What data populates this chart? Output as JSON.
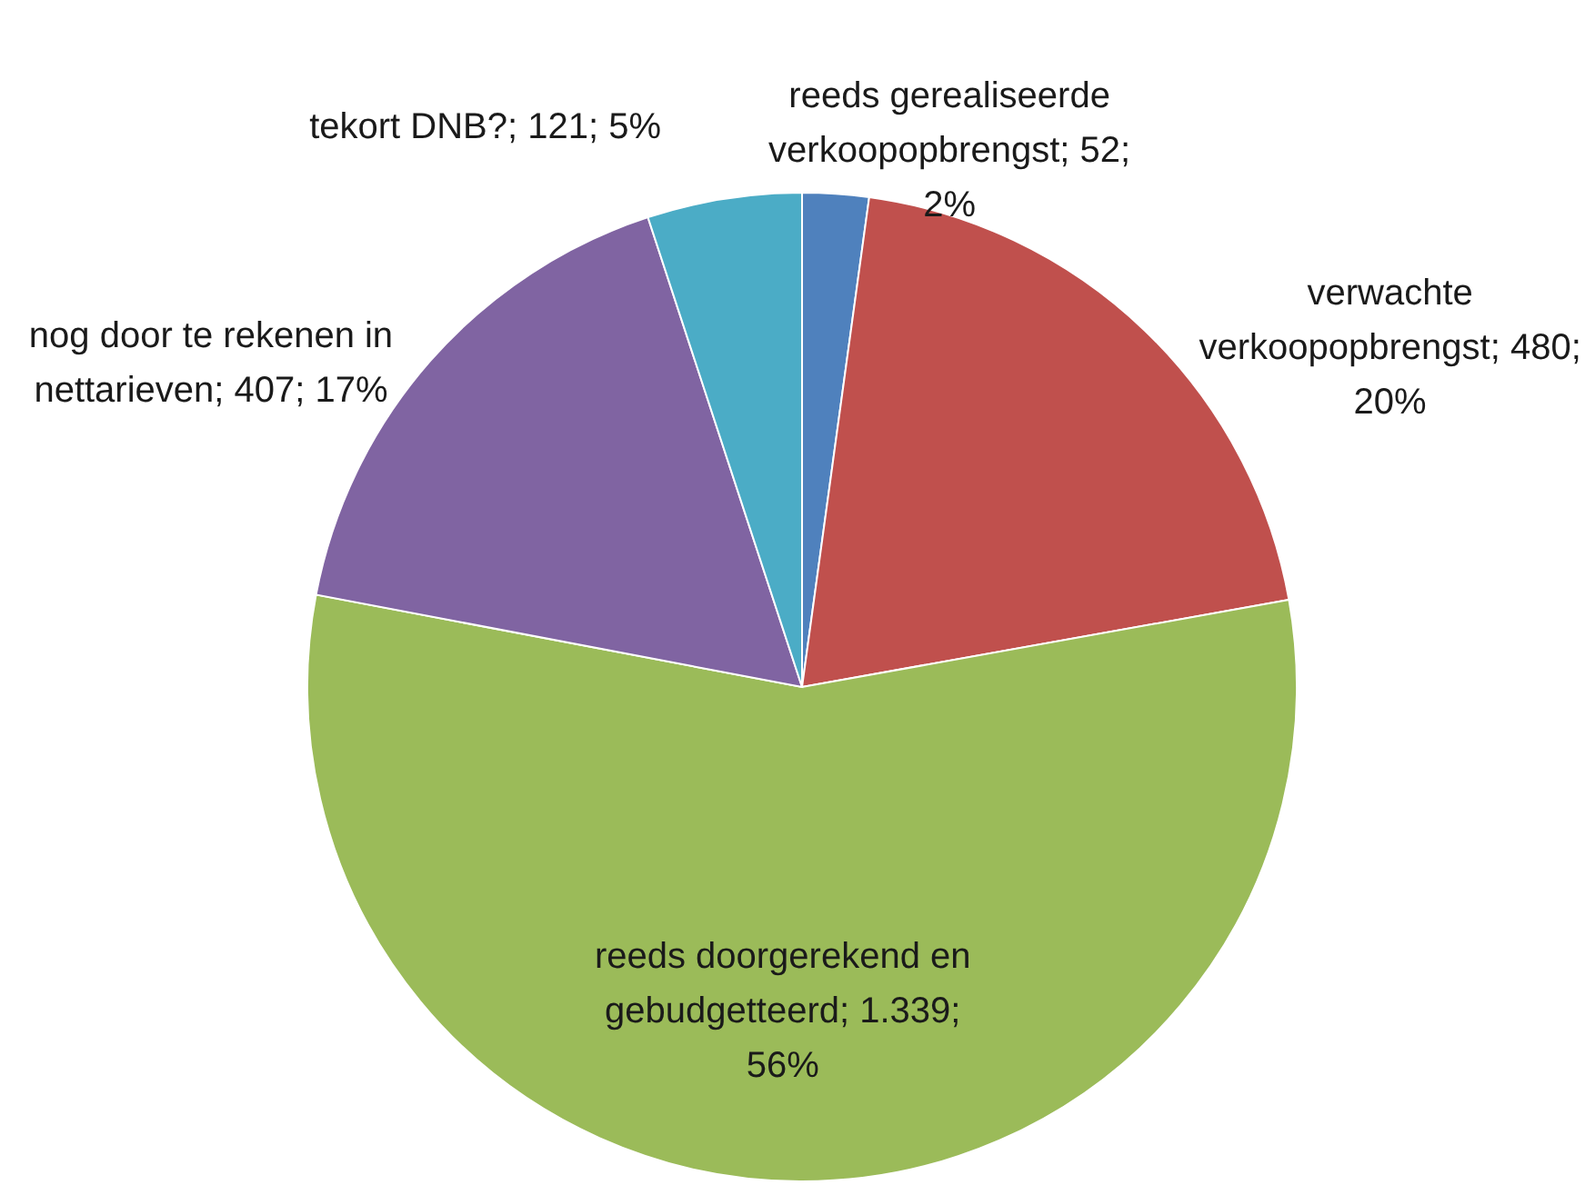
{
  "chart_data": {
    "type": "pie",
    "categories": [
      "reeds gerealiseerde verkoopopbrengst",
      "verwachte verkoopopbrengst",
      "reeds doorgerekend en gebudgetteerd",
      "nog door te rekenen in nettarieven",
      "tekort DNB?"
    ],
    "values": [
      52,
      480,
      1339,
      407,
      121
    ],
    "colors": [
      "#4f81bd",
      "#c0504d",
      "#9bbb59",
      "#8064a2",
      "#4bacc6"
    ],
    "value_labels": [
      "52; 2%",
      "480; 20%",
      "1.339; 56%",
      "407; 17%",
      "121; 5%"
    ]
  }
}
